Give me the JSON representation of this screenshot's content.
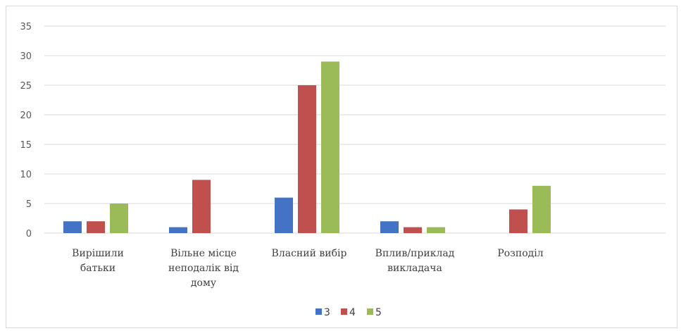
{
  "chart_data": {
    "type": "bar",
    "categories": [
      [
        "Вирішили",
        "батьки"
      ],
      [
        "Вільне місце",
        "неподалік від",
        "дому"
      ],
      [
        "Власний вибір"
      ],
      [
        "Вплив/приклад",
        "викладача"
      ],
      [
        "Розподіл"
      ]
    ],
    "series": [
      {
        "name": "3",
        "color": "#4472c4",
        "values": [
          2,
          1,
          6,
          2,
          0
        ]
      },
      {
        "name": "4",
        "color": "#c0504d",
        "values": [
          2,
          9,
          25,
          1,
          4
        ]
      },
      {
        "name": "5",
        "color": "#9bbb59",
        "values": [
          5,
          0,
          29,
          1,
          8
        ]
      }
    ],
    "ylim": [
      0,
      35
    ],
    "yticks": [
      0,
      5,
      10,
      15,
      20,
      25,
      30,
      35
    ],
    "grid": true,
    "legend": "bottom"
  }
}
